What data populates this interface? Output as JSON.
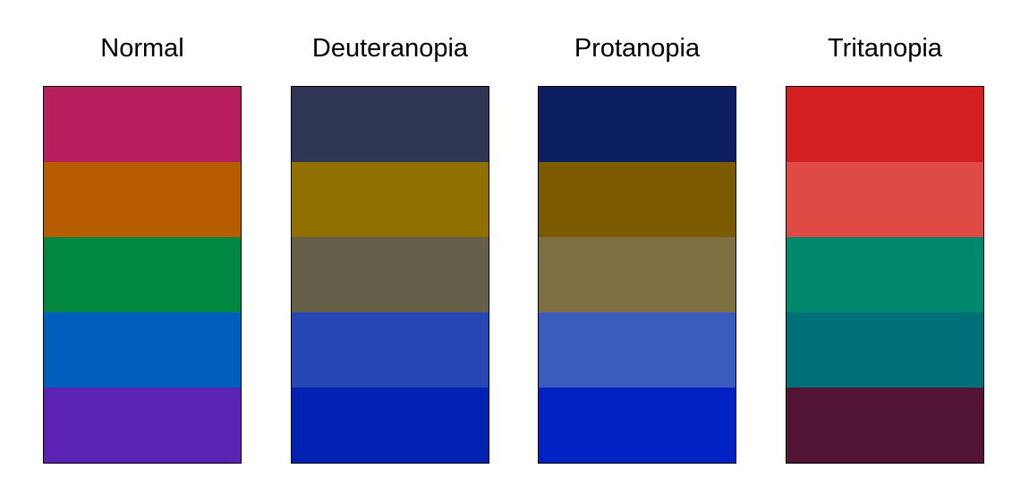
{
  "panels": [
    {
      "title": "Normal",
      "colors": [
        "#b81f5e",
        "#b85c00",
        "#008840",
        "#005fbd",
        "#5b23b4"
      ]
    },
    {
      "title": "Deuteranopia",
      "colors": [
        "#2e3654",
        "#907000",
        "#655e48",
        "#2646b6",
        "#0021b2"
      ]
    },
    {
      "title": "Protanopia",
      "colors": [
        "#0b1e60",
        "#7c5b00",
        "#7e7042",
        "#3b5cbc",
        "#0022c2"
      ]
    },
    {
      "title": "Tritanopia",
      "colors": [
        "#d41f20",
        "#e04a44",
        "#00886f",
        "#006f77",
        "#521537"
      ]
    }
  ]
}
